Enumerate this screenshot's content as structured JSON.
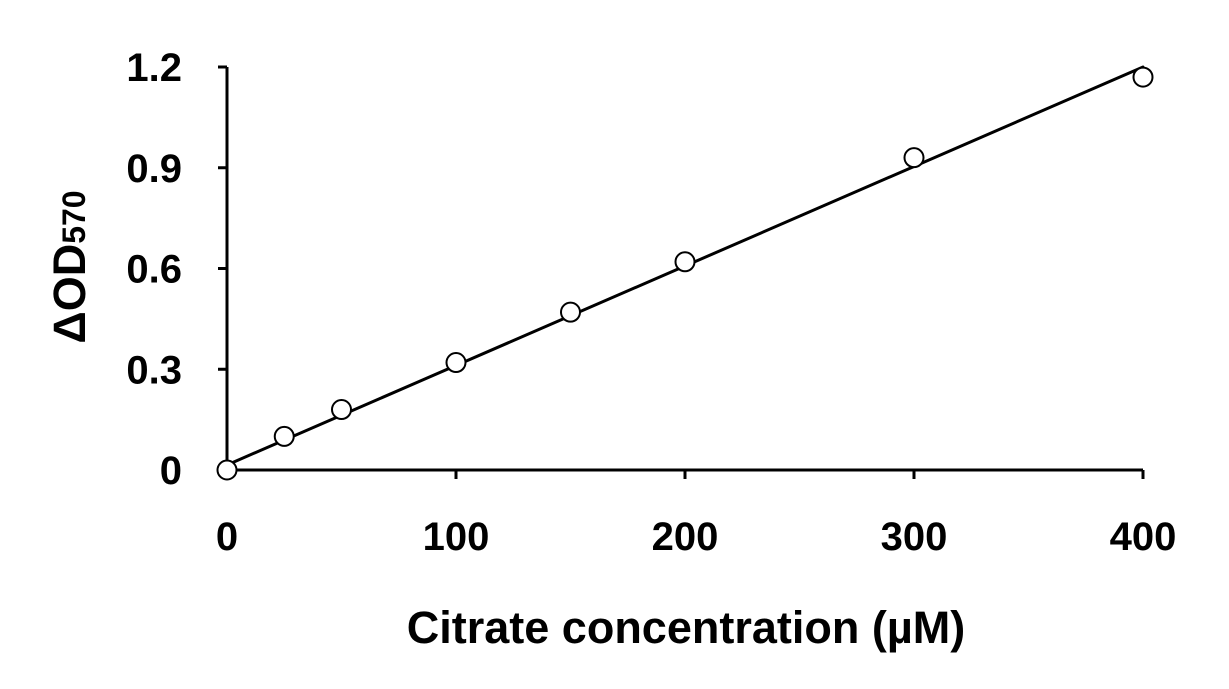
{
  "chart_data": {
    "type": "scatter",
    "title": "",
    "xlabel": "Citrate concentration (µM)",
    "ylabel": {
      "main": "ΔOD",
      "subscript": "570"
    },
    "xlim": [
      0,
      400
    ],
    "ylim": [
      0,
      1.2
    ],
    "x_ticks": [
      0,
      100,
      200,
      300,
      400
    ],
    "x_tick_labels": [
      "0",
      "100",
      "200",
      "300",
      "400"
    ],
    "y_ticks": [
      0,
      0.3,
      0.6,
      0.9,
      1.2
    ],
    "y_tick_labels": [
      "0",
      "0.3",
      "0.6",
      "0.9",
      "1.2"
    ],
    "grid": false,
    "legend": "none",
    "series": [
      {
        "marker": "open-circle",
        "x": [
          0,
          25,
          50,
          100,
          150,
          200,
          300,
          400
        ],
        "y": [
          0.0,
          0.1,
          0.18,
          0.32,
          0.47,
          0.62,
          0.93,
          1.17
        ]
      }
    ],
    "trendline": {
      "type": "linear",
      "x": [
        0,
        400
      ],
      "y": [
        0.015,
        1.2
      ]
    },
    "colors": {
      "axis": "#000000",
      "line": "#000000",
      "marker_fill": "#ffffff",
      "marker_stroke": "#000000"
    }
  }
}
